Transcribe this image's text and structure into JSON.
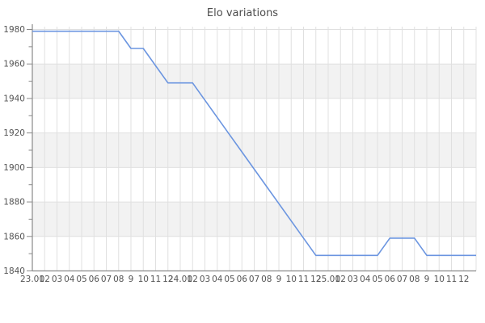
{
  "chart_data": {
    "type": "line",
    "title": "Elo variations",
    "x_tick_labels": [
      "23.01",
      "02",
      "03",
      "04",
      "05",
      "06",
      "07",
      "08",
      "9",
      "10",
      "11",
      "12",
      "24.01",
      "02",
      "03",
      "04",
      "05",
      "06",
      "07",
      "08",
      "9",
      "10",
      "11",
      "12",
      "25.01",
      "02",
      "03",
      "04",
      "05",
      "06",
      "07",
      "08",
      "9",
      "10",
      "11",
      "12"
    ],
    "series": [
      {
        "name": "Elo",
        "values": [
          1979,
          1979,
          1979,
          1979,
          1979,
          1979,
          1979,
          1979,
          1969,
          1969,
          1959,
          1949,
          1949,
          1949,
          1939,
          1929,
          1919,
          1909,
          1899,
          1889,
          1879,
          1869,
          1859,
          1849,
          1849,
          1849,
          1849,
          1849,
          1849,
          1859,
          1859,
          1859,
          1849,
          1849,
          1849,
          1849
        ]
      }
    ],
    "ylim": [
      1840,
      1980
    ],
    "y_major_step": 20,
    "y_minor_step": 10,
    "y_tick_labels": [
      "1840",
      "1860",
      "1880",
      "1900",
      "1920",
      "1940",
      "1960",
      "1980"
    ],
    "grid": true,
    "legend": "none",
    "colors": {
      "line": "#6b95e0",
      "band": "#f2f2f2",
      "grid": "#e0e0e0",
      "axis": "#8a8a8a",
      "tick_text": "#545454",
      "title_text": "#4c4c4c",
      "background": "#ffffff"
    }
  }
}
